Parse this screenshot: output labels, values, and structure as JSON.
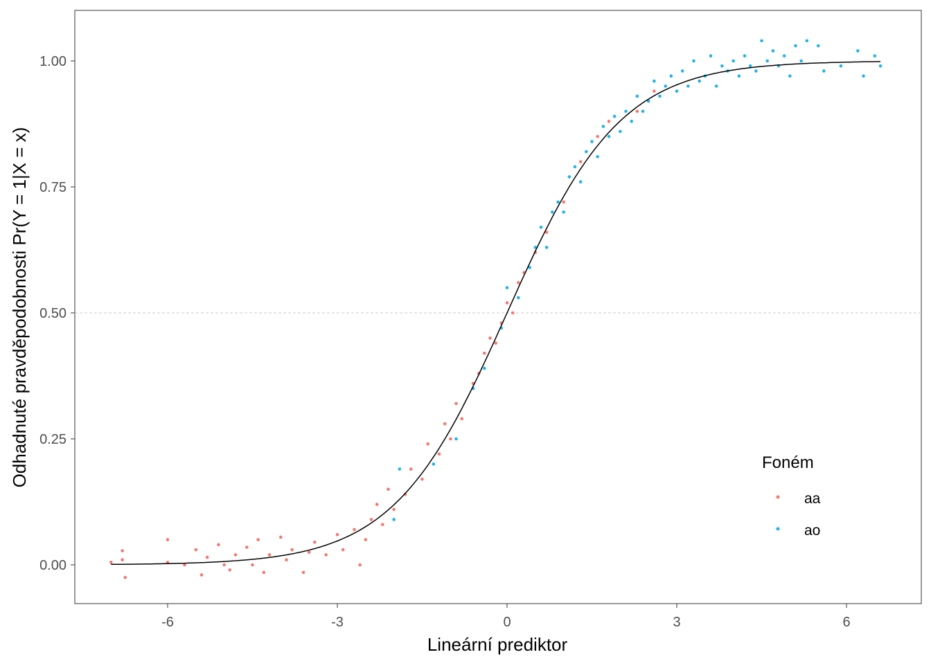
{
  "chart_data": {
    "type": "scatter",
    "title": "",
    "xlabel": "Lineární prediktor",
    "ylabel": "Odhadnuté pravděpodobnosti Pr(Y = 1|X = x)",
    "xlim": [
      -7.5,
      7.5
    ],
    "ylim": [
      -0.08,
      1.1
    ],
    "x_ticks": [
      -6,
      -3,
      0,
      3,
      6
    ],
    "x_tick_labels": [
      "-6",
      "-3",
      "0",
      "3",
      "6"
    ],
    "y_ticks": [
      0,
      0.25,
      0.5,
      0.75,
      1
    ],
    "y_tick_labels": [
      "0.00",
      "0.25",
      "0.50",
      "0.75",
      "1.00"
    ],
    "reference_line_y": 0.5,
    "grid": false,
    "legend": {
      "title": "Foném",
      "placement": "right-bottom inside",
      "entries": [
        "aa",
        "ao"
      ]
    },
    "curve": {
      "name": "logistic fit",
      "color": "#000000",
      "x_range": [
        -7,
        6.6
      ]
    },
    "series": [
      {
        "name": "aa",
        "color": "#F8766D",
        "points": [
          [
            -7.0,
            0.005
          ],
          [
            -6.8,
            0.028
          ],
          [
            -6.75,
            -0.025
          ],
          [
            -6.8,
            0.01
          ],
          [
            -6.0,
            0.05
          ],
          [
            -6.0,
            0.005
          ],
          [
            -5.7,
            0.0
          ],
          [
            -5.5,
            0.03
          ],
          [
            -5.4,
            -0.02
          ],
          [
            -5.3,
            0.015
          ],
          [
            -5.1,
            0.04
          ],
          [
            -5.0,
            0.0
          ],
          [
            -4.9,
            -0.01
          ],
          [
            -4.8,
            0.02
          ],
          [
            -4.6,
            0.035
          ],
          [
            -4.5,
            0.0
          ],
          [
            -4.4,
            0.05
          ],
          [
            -4.3,
            -0.015
          ],
          [
            -4.2,
            0.02
          ],
          [
            -4.0,
            0.055
          ],
          [
            -3.9,
            0.01
          ],
          [
            -3.8,
            0.03
          ],
          [
            -3.6,
            -0.015
          ],
          [
            -3.5,
            0.025
          ],
          [
            -3.4,
            0.045
          ],
          [
            -3.2,
            0.02
          ],
          [
            -3.0,
            0.06
          ],
          [
            -2.9,
            0.03
          ],
          [
            -2.7,
            0.07
          ],
          [
            -2.6,
            0.0
          ],
          [
            -2.5,
            0.05
          ],
          [
            -2.4,
            0.09
          ],
          [
            -2.3,
            0.12
          ],
          [
            -2.2,
            0.08
          ],
          [
            -2.1,
            0.15
          ],
          [
            -2.0,
            0.11
          ],
          [
            -1.8,
            0.14
          ],
          [
            -1.7,
            0.19
          ],
          [
            -1.5,
            0.17
          ],
          [
            -1.4,
            0.24
          ],
          [
            -1.2,
            0.22
          ],
          [
            -1.1,
            0.28
          ],
          [
            -1.0,
            0.25
          ],
          [
            -0.9,
            0.32
          ],
          [
            -0.8,
            0.29
          ],
          [
            -0.6,
            0.36
          ],
          [
            -0.5,
            0.38
          ],
          [
            -0.4,
            0.42
          ],
          [
            -0.3,
            0.45
          ],
          [
            -0.2,
            0.44
          ],
          [
            -0.1,
            0.48
          ],
          [
            0.0,
            0.52
          ],
          [
            0.1,
            0.5
          ],
          [
            0.2,
            0.56
          ],
          [
            0.3,
            0.58
          ],
          [
            0.5,
            0.62
          ],
          [
            0.7,
            0.66
          ],
          [
            1.0,
            0.72
          ],
          [
            1.3,
            0.8
          ],
          [
            1.6,
            0.85
          ],
          [
            1.8,
            0.88
          ],
          [
            2.3,
            0.9
          ],
          [
            2.6,
            0.94
          ]
        ]
      },
      {
        "name": "ao",
        "color": "#1FB4E8",
        "points": [
          [
            -2.0,
            0.09
          ],
          [
            -1.9,
            0.19
          ],
          [
            -1.3,
            0.2
          ],
          [
            -0.9,
            0.25
          ],
          [
            -0.6,
            0.35
          ],
          [
            -0.4,
            0.39
          ],
          [
            -0.1,
            0.47
          ],
          [
            0.0,
            0.55
          ],
          [
            0.2,
            0.53
          ],
          [
            0.4,
            0.59
          ],
          [
            0.5,
            0.63
          ],
          [
            0.6,
            0.67
          ],
          [
            0.7,
            0.63
          ],
          [
            0.8,
            0.7
          ],
          [
            0.9,
            0.72
          ],
          [
            1.0,
            0.7
          ],
          [
            1.1,
            0.77
          ],
          [
            1.2,
            0.79
          ],
          [
            1.3,
            0.76
          ],
          [
            1.4,
            0.82
          ],
          [
            1.5,
            0.84
          ],
          [
            1.6,
            0.81
          ],
          [
            1.7,
            0.87
          ],
          [
            1.8,
            0.85
          ],
          [
            1.9,
            0.89
          ],
          [
            2.0,
            0.86
          ],
          [
            2.1,
            0.9
          ],
          [
            2.2,
            0.88
          ],
          [
            2.3,
            0.93
          ],
          [
            2.4,
            0.9
          ],
          [
            2.5,
            0.92
          ],
          [
            2.6,
            0.96
          ],
          [
            2.7,
            0.93
          ],
          [
            2.8,
            0.95
          ],
          [
            2.9,
            0.97
          ],
          [
            3.0,
            0.94
          ],
          [
            3.1,
            0.98
          ],
          [
            3.2,
            0.95
          ],
          [
            3.3,
            1.0
          ],
          [
            3.4,
            0.96
          ],
          [
            3.5,
            0.97
          ],
          [
            3.6,
            1.01
          ],
          [
            3.7,
            0.95
          ],
          [
            3.8,
            0.99
          ],
          [
            3.9,
            0.98
          ],
          [
            4.0,
            1.0
          ],
          [
            4.1,
            0.97
          ],
          [
            4.2,
            1.01
          ],
          [
            4.3,
            0.99
          ],
          [
            4.4,
            0.98
          ],
          [
            4.5,
            1.04
          ],
          [
            4.6,
            1.0
          ],
          [
            4.7,
            1.02
          ],
          [
            4.8,
            0.99
          ],
          [
            4.9,
            1.01
          ],
          [
            5.0,
            0.97
          ],
          [
            5.1,
            1.03
          ],
          [
            5.2,
            1.0
          ],
          [
            5.3,
            1.04
          ],
          [
            5.5,
            1.03
          ],
          [
            5.6,
            0.98
          ],
          [
            5.9,
            0.99
          ],
          [
            6.2,
            1.02
          ],
          [
            6.3,
            0.97
          ],
          [
            6.5,
            1.01
          ],
          [
            6.6,
            0.99
          ]
        ]
      }
    ]
  }
}
